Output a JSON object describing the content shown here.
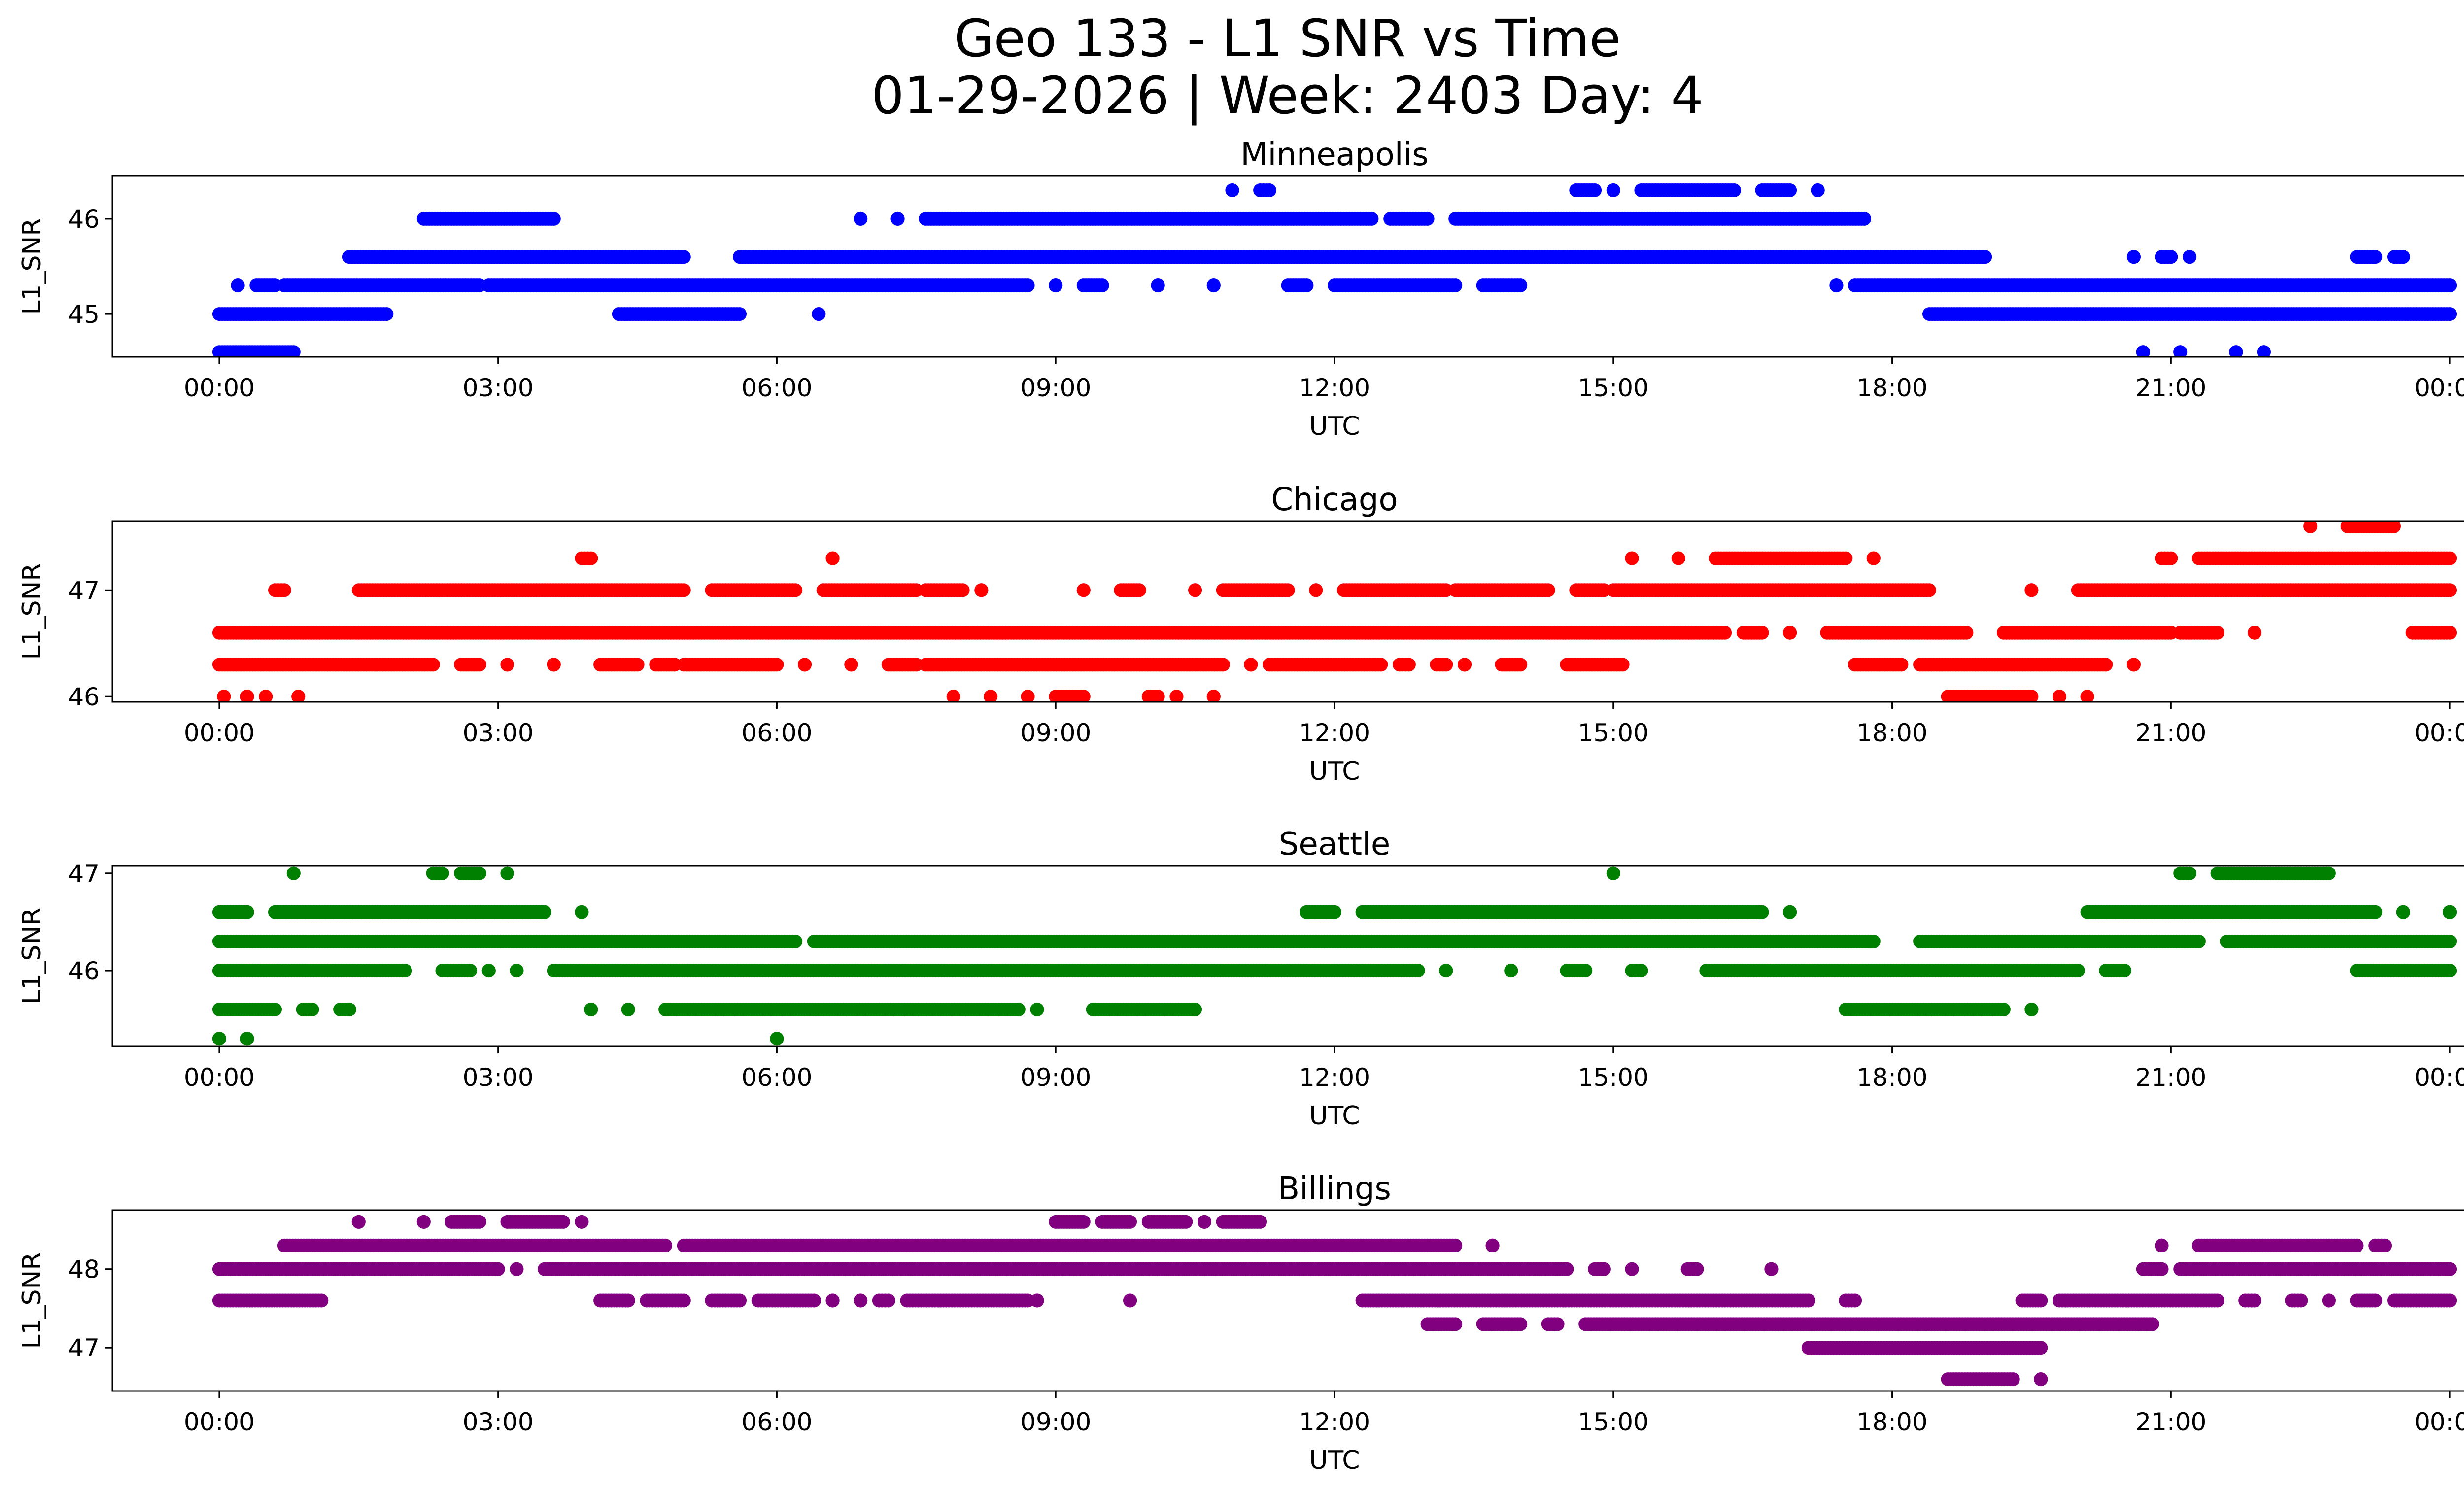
{
  "figure": {
    "title_line1": "Geo 133 - L1 SNR vs Time",
    "title_line2": "01-29-2026 | Week: 2403 Day: 4"
  },
  "chart_data": [
    {
      "type": "scatter",
      "title": "Minneapolis",
      "xlabel": "UTC",
      "ylabel": "L1_SNR",
      "color": "#0000ff",
      "xlim": [
        -1.15,
        25.15
      ],
      "ylim": [
        44.55,
        46.45
      ],
      "xticks": [
        0,
        3,
        6,
        9,
        12,
        15,
        18,
        21,
        24
      ],
      "xtick_labels": [
        "00:00",
        "03:00",
        "06:00",
        "09:00",
        "12:00",
        "15:00",
        "18:00",
        "21:00",
        "00:00"
      ],
      "yticks": [
        45,
        46
      ],
      "ytick_labels": [
        "45",
        "46"
      ],
      "bands": [
        {
          "y": 44.6,
          "x": [
            [
              0.0,
              0.8
            ]
          ]
        },
        {
          "y": 45.0,
          "x": [
            [
              0.0,
              1.8
            ],
            [
              4.3,
              5.6
            ],
            [
              6.45,
              6.45
            ],
            [
              18.4,
              24.0
            ]
          ]
        },
        {
          "y": 45.3,
          "x": [
            [
              0.2,
              0.2
            ],
            [
              0.4,
              0.6
            ],
            [
              0.7,
              2.8
            ],
            [
              2.9,
              8.7
            ],
            [
              9.0,
              9.0
            ],
            [
              9.3,
              9.5
            ],
            [
              10.1,
              10.1
            ],
            [
              10.7,
              10.7
            ],
            [
              11.5,
              11.7
            ],
            [
              12.0,
              13.3
            ],
            [
              13.6,
              14.0
            ],
            [
              17.4,
              17.4
            ],
            [
              17.6,
              24.0
            ]
          ]
        },
        {
          "y": 45.6,
          "x": [
            [
              1.4,
              5.0
            ],
            [
              5.6,
              19.0
            ],
            [
              20.6,
              20.6
            ],
            [
              20.9,
              21.0
            ],
            [
              21.2,
              21.2
            ],
            [
              23.0,
              23.2
            ],
            [
              23.4,
              23.5
            ]
          ]
        },
        {
          "y": 46.0,
          "x": [
            [
              2.2,
              3.6
            ],
            [
              6.9,
              6.9
            ],
            [
              7.3,
              7.3
            ],
            [
              7.6,
              12.4
            ],
            [
              12.6,
              13.0
            ],
            [
              13.3,
              17.7
            ]
          ]
        },
        {
          "y": 46.3,
          "x": [
            [
              10.9,
              10.9
            ],
            [
              11.2,
              11.3
            ],
            [
              14.6,
              14.8
            ],
            [
              15.0,
              15.0
            ],
            [
              15.3,
              16.3
            ],
            [
              16.6,
              16.9
            ],
            [
              17.2,
              17.2
            ]
          ]
        },
        {
          "y": 44.6,
          "x": [
            [
              20.7,
              20.7
            ],
            [
              21.1,
              21.1
            ],
            [
              21.7,
              21.7
            ],
            [
              22.0,
              22.0
            ]
          ]
        }
      ]
    },
    {
      "type": "scatter",
      "title": "Chicago",
      "xlabel": "UTC",
      "ylabel": "L1_SNR",
      "color": "#ff0000",
      "xlim": [
        -1.15,
        25.15
      ],
      "ylim": [
        45.95,
        47.65
      ],
      "xticks": [
        0,
        3,
        6,
        9,
        12,
        15,
        18,
        21,
        24
      ],
      "xtick_labels": [
        "00:00",
        "03:00",
        "06:00",
        "09:00",
        "12:00",
        "15:00",
        "18:00",
        "21:00",
        "00:00"
      ],
      "yticks": [
        46,
        47
      ],
      "ytick_labels": [
        "46",
        "47"
      ],
      "bands": [
        {
          "y": 46.0,
          "x": [
            [
              0.05,
              0.05
            ],
            [
              0.3,
              0.3
            ],
            [
              0.5,
              0.5
            ],
            [
              0.85,
              0.85
            ],
            [
              7.9,
              7.9
            ],
            [
              8.3,
              8.3
            ],
            [
              8.7,
              8.7
            ],
            [
              9.0,
              9.3
            ],
            [
              10.0,
              10.1
            ],
            [
              10.3,
              10.3
            ],
            [
              10.7,
              10.7
            ],
            [
              18.6,
              19.5
            ],
            [
              19.8,
              19.8
            ],
            [
              20.1,
              20.1
            ]
          ]
        },
        {
          "y": 46.3,
          "x": [
            [
              0.0,
              2.3
            ],
            [
              2.6,
              2.8
            ],
            [
              3.1,
              3.1
            ],
            [
              3.6,
              3.6
            ],
            [
              4.1,
              4.5
            ],
            [
              4.7,
              4.9
            ],
            [
              5.0,
              6.0
            ],
            [
              6.3,
              6.3
            ],
            [
              6.8,
              6.8
            ],
            [
              7.2,
              7.5
            ],
            [
              7.6,
              10.8
            ],
            [
              11.1,
              11.1
            ],
            [
              11.3,
              12.5
            ],
            [
              12.7,
              12.8
            ],
            [
              13.1,
              13.2
            ],
            [
              13.4,
              13.4
            ],
            [
              13.8,
              14.0
            ],
            [
              14.5,
              15.1
            ],
            [
              17.6,
              18.1
            ],
            [
              18.3,
              20.3
            ],
            [
              20.6,
              20.6
            ]
          ]
        },
        {
          "y": 46.6,
          "x": [
            [
              0.0,
              16.2
            ],
            [
              16.4,
              16.6
            ],
            [
              16.9,
              16.9
            ],
            [
              17.3,
              18.8
            ],
            [
              19.2,
              21.0
            ],
            [
              21.1,
              21.5
            ],
            [
              21.9,
              21.9
            ],
            [
              23.6,
              24.0
            ]
          ]
        },
        {
          "y": 47.0,
          "x": [
            [
              0.6,
              0.7
            ],
            [
              1.5,
              5.0
            ],
            [
              5.3,
              6.2
            ],
            [
              6.5,
              7.5
            ],
            [
              7.6,
              8.0
            ],
            [
              8.2,
              8.2
            ],
            [
              9.3,
              9.3
            ],
            [
              9.7,
              9.9
            ],
            [
              10.5,
              10.5
            ],
            [
              10.8,
              11.5
            ],
            [
              11.8,
              11.8
            ],
            [
              12.1,
              13.2
            ],
            [
              13.3,
              14.3
            ],
            [
              14.6,
              14.9
            ],
            [
              15.0,
              18.4
            ],
            [
              19.5,
              19.5
            ],
            [
              20.0,
              24.0
            ]
          ]
        },
        {
          "y": 47.3,
          "x": [
            [
              3.9,
              4.0
            ],
            [
              6.6,
              6.6
            ],
            [
              15.2,
              15.2
            ],
            [
              15.7,
              15.7
            ],
            [
              16.1,
              17.5
            ],
            [
              17.8,
              17.8
            ],
            [
              20.9,
              21.0
            ],
            [
              21.3,
              24.0
            ]
          ]
        },
        {
          "y": 47.6,
          "x": [
            [
              22.5,
              22.5
            ],
            [
              22.9,
              23.4
            ]
          ]
        }
      ]
    },
    {
      "type": "scatter",
      "title": "Seattle",
      "xlabel": "UTC",
      "ylabel": "L1_SNR",
      "color": "#008000",
      "xlim": [
        -1.15,
        25.15
      ],
      "ylim": [
        45.22,
        47.08
      ],
      "xticks": [
        0,
        3,
        6,
        9,
        12,
        15,
        18,
        21,
        24
      ],
      "xtick_labels": [
        "00:00",
        "03:00",
        "06:00",
        "09:00",
        "12:00",
        "15:00",
        "18:00",
        "21:00",
        "00:00"
      ],
      "yticks": [
        46,
        47
      ],
      "ytick_labels": [
        "46",
        "47"
      ],
      "bands": [
        {
          "y": 45.3,
          "x": [
            [
              0.0,
              0.0
            ],
            [
              0.3,
              0.3
            ],
            [
              6.0,
              6.0
            ]
          ]
        },
        {
          "y": 45.6,
          "x": [
            [
              0.0,
              0.6
            ],
            [
              0.9,
              1.0
            ],
            [
              1.3,
              1.4
            ],
            [
              4.0,
              4.0
            ],
            [
              4.4,
              4.4
            ],
            [
              4.8,
              8.6
            ],
            [
              8.8,
              8.8
            ],
            [
              9.4,
              10.5
            ],
            [
              17.5,
              19.2
            ],
            [
              19.5,
              19.5
            ]
          ]
        },
        {
          "y": 46.0,
          "x": [
            [
              0.0,
              2.0
            ],
            [
              2.4,
              2.7
            ],
            [
              2.9,
              2.9
            ],
            [
              3.2,
              3.2
            ],
            [
              3.6,
              12.9
            ],
            [
              13.2,
              13.2
            ],
            [
              13.9,
              13.9
            ],
            [
              14.5,
              14.7
            ],
            [
              15.2,
              15.3
            ],
            [
              16.0,
              20.0
            ],
            [
              20.3,
              20.5
            ],
            [
              23.0,
              24.0
            ]
          ]
        },
        {
          "y": 46.3,
          "x": [
            [
              0.0,
              6.2
            ],
            [
              6.4,
              17.8
            ],
            [
              18.3,
              21.3
            ],
            [
              21.6,
              24.0
            ]
          ]
        },
        {
          "y": 46.6,
          "x": [
            [
              0.0,
              0.3
            ],
            [
              0.6,
              3.5
            ],
            [
              3.9,
              3.9
            ],
            [
              11.7,
              12.0
            ],
            [
              12.3,
              16.6
            ],
            [
              16.9,
              16.9
            ],
            [
              20.1,
              23.2
            ],
            [
              23.5,
              23.5
            ],
            [
              24.0,
              24.0
            ]
          ]
        },
        {
          "y": 47.0,
          "x": [
            [
              0.8,
              0.8
            ],
            [
              2.3,
              2.4
            ],
            [
              2.6,
              2.8
            ],
            [
              3.1,
              3.1
            ],
            [
              15.0,
              15.0
            ],
            [
              21.1,
              21.2
            ],
            [
              21.5,
              22.7
            ]
          ]
        }
      ]
    },
    {
      "type": "scatter",
      "title": "Billings",
      "xlabel": "UTC",
      "ylabel": "L1_SNR",
      "color": "#800080",
      "xlim": [
        -1.15,
        25.15
      ],
      "ylim": [
        46.45,
        48.75
      ],
      "xticks": [
        0,
        3,
        6,
        9,
        12,
        15,
        18,
        21,
        24
      ],
      "xtick_labels": [
        "00:00",
        "03:00",
        "06:00",
        "09:00",
        "12:00",
        "15:00",
        "18:00",
        "21:00",
        "00:00"
      ],
      "yticks": [
        47,
        48
      ],
      "ytick_labels": [
        "47",
        "48"
      ],
      "bands": [
        {
          "y": 46.6,
          "x": [
            [
              18.6,
              19.3
            ],
            [
              19.6,
              19.6
            ]
          ]
        },
        {
          "y": 47.0,
          "x": [
            [
              17.1,
              19.6
            ]
          ]
        },
        {
          "y": 47.3,
          "x": [
            [
              13.0,
              13.3
            ],
            [
              13.6,
              14.0
            ],
            [
              14.3,
              14.4
            ],
            [
              14.7,
              20.8
            ]
          ]
        },
        {
          "y": 47.6,
          "x": [
            [
              0.0,
              1.1
            ],
            [
              4.1,
              4.4
            ],
            [
              4.6,
              5.0
            ],
            [
              5.3,
              5.6
            ],
            [
              5.8,
              6.4
            ],
            [
              6.6,
              6.6
            ],
            [
              6.9,
              6.9
            ],
            [
              7.1,
              7.2
            ],
            [
              7.4,
              8.7
            ],
            [
              8.8,
              8.8
            ],
            [
              9.8,
              9.8
            ],
            [
              12.3,
              17.1
            ],
            [
              17.5,
              17.6
            ],
            [
              19.4,
              19.6
            ],
            [
              19.8,
              21.5
            ],
            [
              21.8,
              21.9
            ],
            [
              22.3,
              22.4
            ],
            [
              22.7,
              22.7
            ],
            [
              23.0,
              23.2
            ],
            [
              23.4,
              24.0
            ]
          ]
        },
        {
          "y": 48.0,
          "x": [
            [
              0.0,
              3.0
            ],
            [
              3.2,
              3.2
            ],
            [
              3.5,
              14.5
            ],
            [
              14.8,
              14.9
            ],
            [
              15.2,
              15.2
            ],
            [
              15.8,
              15.9
            ],
            [
              16.7,
              16.7
            ],
            [
              20.7,
              20.9
            ],
            [
              21.1,
              24.0
            ]
          ]
        },
        {
          "y": 48.3,
          "x": [
            [
              0.7,
              4.8
            ],
            [
              5.0,
              13.3
            ],
            [
              13.7,
              13.7
            ],
            [
              20.9,
              20.9
            ],
            [
              21.3,
              23.0
            ],
            [
              23.2,
              23.3
            ]
          ]
        },
        {
          "y": 48.6,
          "x": [
            [
              1.5,
              1.5
            ],
            [
              2.2,
              2.2
            ],
            [
              2.5,
              2.8
            ],
            [
              3.1,
              3.7
            ],
            [
              3.9,
              3.9
            ],
            [
              9.0,
              9.3
            ],
            [
              9.5,
              9.8
            ],
            [
              10.0,
              10.4
            ],
            [
              10.6,
              10.6
            ],
            [
              10.8,
              11.2
            ]
          ]
        }
      ]
    }
  ]
}
